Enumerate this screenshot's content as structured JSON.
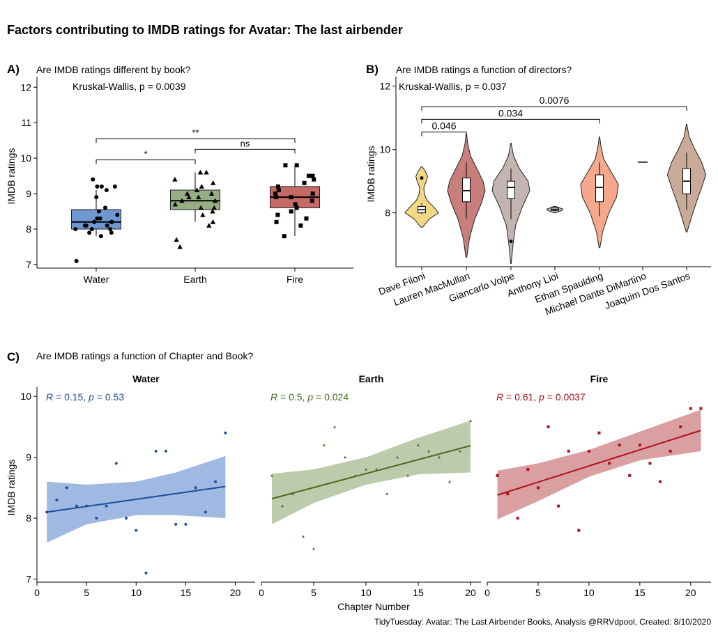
{
  "figure": {
    "title": "Factors contributing to IMDB ratings for Avatar: The last airbender",
    "caption": "TidyTuesday: Avatar: The Last Airbender Books, Analysis @RRVdpool, Created: 8/10/2020"
  },
  "chart_data": [
    {
      "type": "box",
      "panel_tag": "A)",
      "title": "Are IMDB ratings different by book?",
      "annotation": "Kruskal-Wallis, p = 0.0039",
      "ylabel": "IMDB ratings",
      "xlabel": "",
      "ylim": [
        6.9,
        12.3
      ],
      "yticks": [
        7,
        8,
        9,
        10,
        11,
        12
      ],
      "categories": [
        "Water",
        "Earth",
        "Fire"
      ],
      "colors": [
        "#6e98d2",
        "#97ae84",
        "#c66a66"
      ],
      "markers": [
        "circle",
        "triangle",
        "square"
      ],
      "boxes": [
        {
          "q1": 8.0,
          "median": 8.2,
          "q3": 8.55,
          "whisker_low": 7.8,
          "whisker_high": 9.1
        },
        {
          "q1": 8.55,
          "median": 8.8,
          "q3": 9.1,
          "whisker_low": 8.2,
          "whisker_high": 9.6
        },
        {
          "q1": 8.6,
          "median": 8.9,
          "q3": 9.2,
          "whisker_low": 7.8,
          "whisker_high": 9.8
        }
      ],
      "points": [
        [
          9.1,
          8.5,
          8.2,
          8.1,
          8.0,
          8.1,
          8.9,
          9.2,
          8.3,
          8.0,
          8.3,
          7.8,
          8.0,
          8.2,
          7.9,
          9.4,
          8.1,
          8.4,
          8.6,
          8.2,
          7.9,
          7.1,
          9.2,
          9.2
        ],
        [
          8.7,
          8.9,
          9.0,
          8.8,
          8.2,
          9.2,
          9.6,
          7.7,
          8.4,
          8.6,
          8.9,
          9.1,
          8.6,
          9.6,
          8.8,
          9.3,
          9.4,
          8.1,
          8.5,
          9.0,
          7.5
        ],
        [
          8.7,
          9.5,
          9.3,
          8.4,
          9.8,
          8.8,
          8.1,
          9.0,
          8.2,
          9.1,
          8.9,
          9.0,
          7.8,
          8.6,
          9.8,
          8.5,
          8.9,
          9.4,
          9.2,
          9.5,
          8.3
        ]
      ],
      "comparisons": [
        {
          "from": "Water",
          "to": "Earth",
          "label": "*",
          "y": 9.95
        },
        {
          "from": "Earth",
          "to": "Fire",
          "label": "ns",
          "y": 10.25
        },
        {
          "from": "Water",
          "to": "Fire",
          "label": "**",
          "y": 10.55
        }
      ]
    },
    {
      "type": "violin",
      "panel_tag": "B)",
      "title": "Are IMDB ratings a function of directors?",
      "annotation": "Kruskal-Wallis, p = 0.037",
      "ylabel": "IMDB ratings",
      "xlabel": "",
      "ylim": [
        6.3,
        12.3
      ],
      "yticks": [
        8,
        10,
        12
      ],
      "categories": [
        "Dave Filoni",
        "Lauren MacMullan",
        "Giancarlo Volpe",
        "Anthony Lioi",
        "Ethan Spaulding",
        "Michael Dante DiMartino",
        "Joaquim Dos Santos"
      ],
      "colors": [
        "#f2d784",
        "#c87f7b",
        "#c4b5b2",
        "#bdbdbd",
        "#f5a88b",
        "#f0f0f0",
        "#c9aa98"
      ],
      "violins": [
        {
          "lo": 7.55,
          "hi": 9.45,
          "shape": [
            [
              7.55,
              0.05
            ],
            [
              7.8,
              0.35
            ],
            [
              8.0,
              0.8
            ],
            [
              8.15,
              0.62
            ],
            [
              8.4,
              0.25
            ],
            [
              8.6,
              0.12
            ],
            [
              8.8,
              0.1
            ],
            [
              9.0,
              0.22
            ],
            [
              9.15,
              0.28
            ],
            [
              9.3,
              0.18
            ],
            [
              9.45,
              0.03
            ]
          ],
          "q1": 8.0,
          "median": 8.1,
          "q3": 8.2,
          "whisker_low": 7.95,
          "whisker_high": 8.3,
          "outliers": [
            9.1
          ]
        },
        {
          "lo": 6.6,
          "hi": 10.5,
          "shape": [
            [
              6.6,
              0.02
            ],
            [
              7.2,
              0.15
            ],
            [
              7.8,
              0.4
            ],
            [
              8.3,
              0.72
            ],
            [
              8.7,
              0.9
            ],
            [
              9.0,
              0.8
            ],
            [
              9.4,
              0.5
            ],
            [
              9.8,
              0.2
            ],
            [
              10.2,
              0.06
            ],
            [
              10.5,
              0.01
            ]
          ],
          "q1": 8.35,
          "median": 8.7,
          "q3": 9.1,
          "whisker_low": 7.8,
          "whisker_high": 9.6,
          "outliers": []
        },
        {
          "lo": 6.4,
          "hi": 10.2,
          "shape": [
            [
              6.4,
              0.01
            ],
            [
              7.0,
              0.1
            ],
            [
              7.6,
              0.22
            ],
            [
              8.2,
              0.55
            ],
            [
              8.7,
              0.9
            ],
            [
              9.0,
              0.82
            ],
            [
              9.4,
              0.4
            ],
            [
              9.8,
              0.12
            ],
            [
              10.2,
              0.01
            ]
          ],
          "q1": 8.45,
          "median": 8.8,
          "q3": 9.0,
          "whisker_low": 7.8,
          "whisker_high": 9.4,
          "outliers": [
            7.1
          ]
        },
        {
          "lo": 8.0,
          "hi": 8.2,
          "shape": [
            [
              8.0,
              0.05
            ],
            [
              8.08,
              0.35
            ],
            [
              8.12,
              0.38
            ],
            [
              8.2,
              0.05
            ]
          ],
          "q1": 8.08,
          "median": 8.1,
          "q3": 8.15,
          "whisker_low": 8.05,
          "whisker_high": 8.18,
          "outliers": []
        },
        {
          "lo": 6.9,
          "hi": 10.4,
          "shape": [
            [
              6.9,
              0.02
            ],
            [
              7.4,
              0.15
            ],
            [
              8.0,
              0.45
            ],
            [
              8.5,
              0.82
            ],
            [
              8.9,
              0.9
            ],
            [
              9.3,
              0.55
            ],
            [
              9.7,
              0.2
            ],
            [
              10.1,
              0.07
            ],
            [
              10.4,
              0.01
            ]
          ],
          "q1": 8.35,
          "median": 8.8,
          "q3": 9.2,
          "whisker_low": 7.9,
          "whisker_high": 9.6,
          "outliers": []
        },
        {
          "lo": 9.6,
          "hi": 9.6,
          "shape": [],
          "q1": 9.6,
          "median": 9.6,
          "q3": 9.6,
          "whisker_low": 9.6,
          "whisker_high": 9.6,
          "outliers": []
        },
        {
          "lo": 7.4,
          "hi": 10.8,
          "shape": [
            [
              7.4,
              0.02
            ],
            [
              7.9,
              0.25
            ],
            [
              8.4,
              0.5
            ],
            [
              8.8,
              0.72
            ],
            [
              9.2,
              0.92
            ],
            [
              9.6,
              0.72
            ],
            [
              10.0,
              0.4
            ],
            [
              10.4,
              0.12
            ],
            [
              10.8,
              0.01
            ]
          ],
          "q1": 8.6,
          "median": 9.0,
          "q3": 9.4,
          "whisker_low": 8.1,
          "whisker_high": 9.9,
          "outliers": []
        }
      ],
      "comparisons": [
        {
          "from": "Dave Filoni",
          "to": "Lauren MacMullan",
          "label": "0.046",
          "y": 10.55
        },
        {
          "from": "Dave Filoni",
          "to": "Ethan Spaulding",
          "label": "0.034",
          "y": 10.95
        },
        {
          "from": "Dave Filoni",
          "to": "Joaquim Dos Santos",
          "label": "0.0076",
          "y": 11.35
        }
      ]
    },
    {
      "type": "scatter",
      "panel_tag": "C)",
      "title": "Are IMDB ratings a function of Chapter and Book?",
      "ylabel": "IMDB ratings",
      "xlabel": "Chapter Number",
      "ylim": [
        6.95,
        10.15
      ],
      "yticks": [
        7,
        8,
        9,
        10
      ],
      "xticks": [
        0,
        5,
        10,
        15,
        20
      ],
      "facets": [
        {
          "name": "Water",
          "stat": {
            "r": "0.15",
            "p": "0.53"
          },
          "color": "#1f4e99",
          "band_color": "#9ab5e0",
          "xlim": [
            0,
            22
          ],
          "x": [
            1,
            2,
            3,
            4,
            5,
            6,
            7,
            8,
            9,
            10,
            11,
            12,
            13,
            14,
            15,
            16,
            17,
            18,
            19
          ],
          "y": [
            8.1,
            8.3,
            8.5,
            8.2,
            8.2,
            8.0,
            8.2,
            8.9,
            8.0,
            7.8,
            7.1,
            9.1,
            9.1,
            7.9,
            7.9,
            8.5,
            8.1,
            8.6,
            9.4
          ],
          "fit": {
            "x0": 1,
            "y0": 8.1,
            "x1": 19,
            "y1": 8.52
          },
          "band": [
            [
              1,
              7.6,
              8.6
            ],
            [
              5,
              7.9,
              8.55
            ],
            [
              10,
              8.05,
              8.6
            ],
            [
              14,
              8.05,
              8.75
            ],
            [
              19,
              8.0,
              9.02
            ]
          ]
        },
        {
          "name": "Earth",
          "stat": {
            "r": "0.5",
            "p": "0.024"
          },
          "color": "#4a6b1f",
          "band_color": "#b7c8a7",
          "xlim": [
            0,
            21
          ],
          "x": [
            1,
            2,
            3,
            4,
            5,
            6,
            7,
            8,
            9,
            10,
            11,
            12,
            13,
            14,
            15,
            16,
            17,
            18,
            19,
            20
          ],
          "y": [
            8.7,
            8.2,
            8.4,
            7.7,
            7.5,
            9.2,
            9.5,
            9.0,
            8.7,
            8.8,
            8.8,
            8.4,
            9.0,
            8.7,
            9.2,
            9.1,
            9.0,
            8.6,
            9.1,
            9.6
          ],
          "fit": {
            "x0": 1,
            "y0": 8.32,
            "x1": 20,
            "y1": 9.19
          },
          "band": [
            [
              1,
              7.9,
              8.73
            ],
            [
              5,
              8.25,
              8.8
            ],
            [
              10,
              8.55,
              9.0
            ],
            [
              15,
              8.72,
              9.32
            ],
            [
              20,
              8.75,
              9.6
            ]
          ]
        },
        {
          "name": "Fire",
          "stat": {
            "r": "0.61",
            "p": "0.0037"
          },
          "color": "#b0101a",
          "band_color": "#d79a9c",
          "xlim": [
            0,
            22
          ],
          "x": [
            1,
            2,
            3,
            4,
            5,
            6,
            7,
            8,
            9,
            10,
            11,
            12,
            13,
            14,
            15,
            16,
            17,
            18,
            19,
            20,
            21
          ],
          "y": [
            8.7,
            8.4,
            8.0,
            8.8,
            8.5,
            9.5,
            8.2,
            9.1,
            7.8,
            9.1,
            9.4,
            8.9,
            9.2,
            8.7,
            9.2,
            8.9,
            8.6,
            9.1,
            9.5,
            9.8,
            9.8
          ],
          "fit": {
            "x0": 1,
            "y0": 8.38,
            "x1": 21,
            "y1": 9.44
          },
          "band": [
            [
              1,
              7.98,
              8.78
            ],
            [
              5,
              8.28,
              8.9
            ],
            [
              10,
              8.68,
              9.12
            ],
            [
              15,
              8.95,
              9.42
            ],
            [
              21,
              9.1,
              9.78
            ]
          ]
        }
      ]
    }
  ]
}
